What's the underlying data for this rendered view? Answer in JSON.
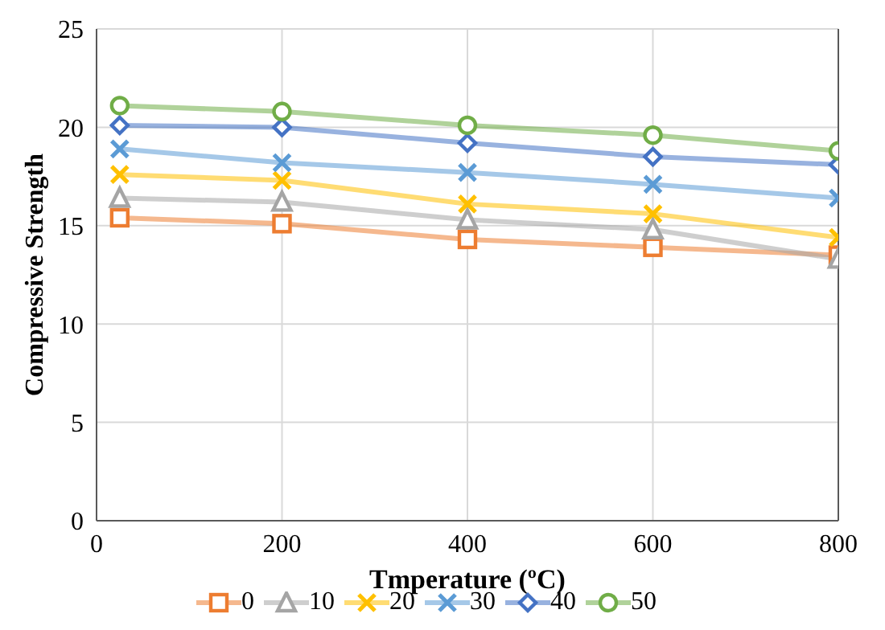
{
  "chart_data": {
    "type": "line",
    "xlabel": "Tmperature (ºC)",
    "ylabel": "Compressive Strength",
    "x": [
      25,
      200,
      400,
      600,
      800
    ],
    "xlim": [
      0,
      800
    ],
    "xticks": [
      0,
      200,
      400,
      600,
      800
    ],
    "ylim": [
      0,
      25
    ],
    "yticks": [
      0,
      5,
      10,
      15,
      20,
      25
    ],
    "grid": true,
    "legend": "bottom",
    "series": [
      {
        "name": "0",
        "color": "#ed7d31",
        "marker": "square",
        "values": [
          15.4,
          15.1,
          14.3,
          13.9,
          13.5
        ]
      },
      {
        "name": "10",
        "color": "#a5a5a5",
        "marker": "triangle",
        "values": [
          16.4,
          16.2,
          15.3,
          14.8,
          13.3
        ]
      },
      {
        "name": "20",
        "color": "#ffc000",
        "marker": "cross",
        "values": [
          17.6,
          17.3,
          16.1,
          15.6,
          14.4
        ]
      },
      {
        "name": "30",
        "color": "#5b9bd5",
        "marker": "cross",
        "values": [
          18.9,
          18.2,
          17.7,
          17.1,
          16.4
        ]
      },
      {
        "name": "40",
        "color": "#4472c4",
        "marker": "diamond",
        "values": [
          20.1,
          20.0,
          19.2,
          18.5,
          18.1
        ]
      },
      {
        "name": "50",
        "color": "#70ad47",
        "marker": "circle",
        "values": [
          21.1,
          20.8,
          20.1,
          19.6,
          18.8
        ]
      }
    ]
  }
}
